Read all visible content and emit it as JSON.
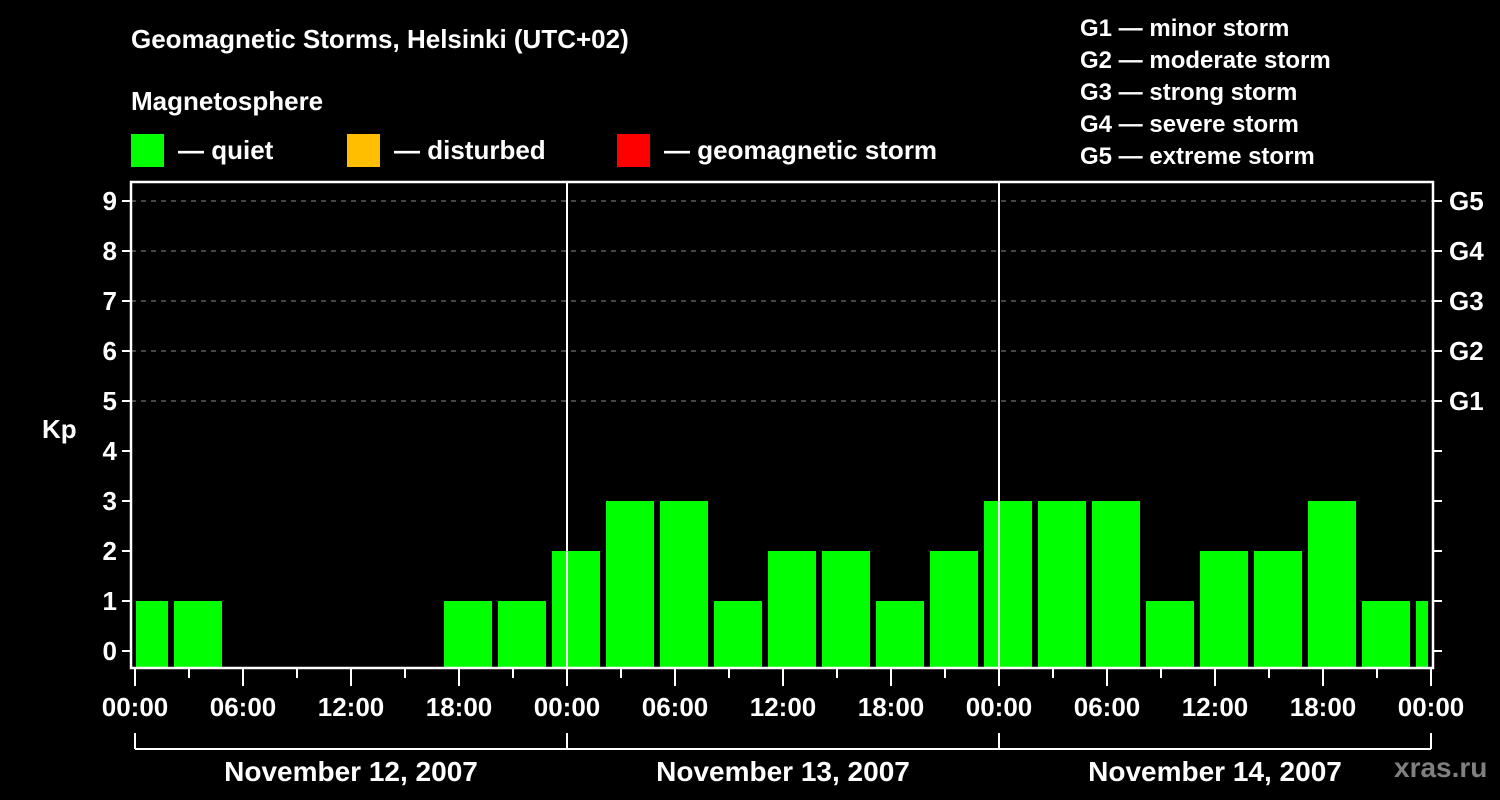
{
  "header": {
    "title": "Geomagnetic Storms, Helsinki (UTC+02)",
    "subtitle": "Magnetosphere"
  },
  "legend": [
    {
      "label": "— quiet",
      "color": "#00ff00"
    },
    {
      "label": "— disturbed",
      "color": "#ffbf00"
    },
    {
      "label": "— geomagnetic storm",
      "color": "#ff0000"
    }
  ],
  "storm_scale": [
    "G1 — minor storm",
    "G2 — moderate storm",
    "G3 — strong storm",
    "G4 — severe storm",
    "G5 — extreme storm"
  ],
  "watermark": "xras.ru",
  "chart_data": {
    "type": "bar",
    "title": "Geomagnetic Storms, Helsinki (UTC+02)",
    "ylabel": "Kp",
    "xlabel": "",
    "ylim": [
      0,
      9
    ],
    "yticks": [
      0,
      1,
      2,
      3,
      4,
      5,
      6,
      7,
      8,
      9
    ],
    "right_axis_labels": [
      {
        "kp": 5,
        "label": "G1"
      },
      {
        "kp": 6,
        "label": "G2"
      },
      {
        "kp": 7,
        "label": "G3"
      },
      {
        "kp": 8,
        "label": "G4"
      },
      {
        "kp": 9,
        "label": "G5"
      }
    ],
    "grid": "dashed horizontal at Kp 5-9",
    "x_tick_labels": [
      "00:00",
      "06:00",
      "12:00",
      "18:00",
      "00:00",
      "06:00",
      "12:00",
      "18:00",
      "00:00",
      "06:00",
      "12:00",
      "18:00",
      "00:00"
    ],
    "days": [
      "November 12, 2007",
      "November 13, 2007",
      "November 14, 2007"
    ],
    "bar_interval_hours": 3,
    "first_bar_start": "02:00 (partial bar 00:00–02:00 preceding)",
    "categories": [
      "Nov12 00-02",
      "Nov12 02-05",
      "Nov12 05-08",
      "Nov12 08-11",
      "Nov12 11-14",
      "Nov12 14-17",
      "Nov12 17-20",
      "Nov12 20-23",
      "Nov12 23-Nov13 02",
      "Nov13 02-05",
      "Nov13 05-08",
      "Nov13 08-11",
      "Nov13 11-14",
      "Nov13 14-17",
      "Nov13 17-20",
      "Nov13 20-23",
      "Nov13 23-Nov14 02",
      "Nov14 02-05",
      "Nov14 05-08",
      "Nov14 08-11",
      "Nov14 11-14",
      "Nov14 14-17",
      "Nov14 17-20",
      "Nov14 20-23",
      "Nov14 23-00"
    ],
    "values": [
      1,
      1,
      0,
      0,
      0,
      0,
      1,
      1,
      2,
      3,
      3,
      1,
      2,
      2,
      1,
      2,
      3,
      3,
      3,
      1,
      2,
      2,
      3,
      1,
      1
    ],
    "bar_color": "#00ff00"
  }
}
